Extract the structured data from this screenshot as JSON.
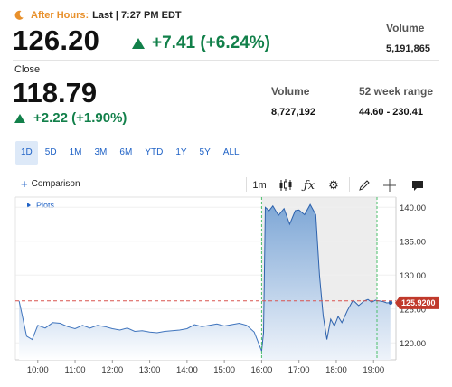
{
  "after_hours": {
    "label": "After Hours:",
    "last": "Last | 7:27 PM EDT",
    "price": "126.20",
    "change": "+7.41 (+6.24%)",
    "volume_label": "Volume",
    "volume": "5,191,865"
  },
  "close": {
    "label": "Close",
    "price": "118.79",
    "change": "+2.22 (+1.90%)",
    "volume_label": "Volume",
    "volume": "8,727,192",
    "range_label": "52 week range",
    "range": "44.60 - 230.41"
  },
  "ranges": [
    "1D",
    "5D",
    "1M",
    "3M",
    "6M",
    "YTD",
    "1Y",
    "5Y",
    "ALL"
  ],
  "toolbar": {
    "comparison": "Comparison",
    "interval": "1m",
    "plots": "Plots"
  },
  "colors": {
    "up": "#12804a",
    "accent": "#1f62c6",
    "after_hours": "#e8902b",
    "price_tag": "#c0392b"
  },
  "chart_data": {
    "type": "area",
    "x_ticks": [
      "10:00",
      "11:00",
      "12:00",
      "13:00",
      "14:00",
      "15:00",
      "16:00",
      "17:00",
      "18:00",
      "19:00"
    ],
    "y_ticks": [
      "140.00",
      "135.00",
      "130.00",
      "125.00",
      "120.00"
    ],
    "ylim": [
      117.5,
      141.5
    ],
    "price_label": "125.9200",
    "reference_line": 126.2,
    "x_hours": [
      9.5,
      9.58,
      9.7,
      9.85,
      10.0,
      10.2,
      10.4,
      10.6,
      10.8,
      11.0,
      11.2,
      11.4,
      11.6,
      11.8,
      12.0,
      12.2,
      12.4,
      12.6,
      12.8,
      13.0,
      13.2,
      13.4,
      13.6,
      13.8,
      14.0,
      14.2,
      14.4,
      14.6,
      14.8,
      15.0,
      15.2,
      15.4,
      15.6,
      15.8,
      15.93,
      16.0,
      16.05,
      16.1,
      16.2,
      16.3,
      16.45,
      16.6,
      16.75,
      16.9,
      17.0,
      17.15,
      17.3,
      17.45,
      17.55,
      17.65,
      17.75,
      17.85,
      17.95,
      18.05,
      18.15,
      18.3,
      18.45,
      18.6,
      18.75,
      18.85,
      18.95,
      19.05,
      19.15,
      19.25,
      19.35,
      19.45
    ],
    "prices": [
      126.2,
      124.2,
      121.0,
      120.5,
      122.6,
      122.2,
      123.0,
      122.9,
      122.4,
      122.1,
      122.6,
      122.2,
      122.6,
      122.4,
      122.1,
      121.9,
      122.2,
      121.7,
      121.8,
      121.6,
      121.5,
      121.7,
      121.8,
      121.9,
      122.1,
      122.7,
      122.4,
      122.6,
      122.8,
      122.5,
      122.7,
      122.9,
      122.6,
      121.6,
      119.8,
      118.8,
      121.5,
      140.0,
      139.5,
      140.2,
      138.8,
      139.8,
      137.5,
      139.5,
      139.6,
      138.9,
      140.4,
      138.9,
      130.0,
      124.0,
      120.5,
      123.5,
      122.5,
      123.9,
      123.0,
      124.8,
      126.3,
      125.5,
      126.2,
      126.4,
      126.0,
      126.3,
      126.2,
      126.1,
      125.9,
      125.92
    ],
    "regular_session": [
      "09:30",
      "16:00"
    ],
    "after_hours_session": [
      "16:00",
      "20:00"
    ]
  }
}
